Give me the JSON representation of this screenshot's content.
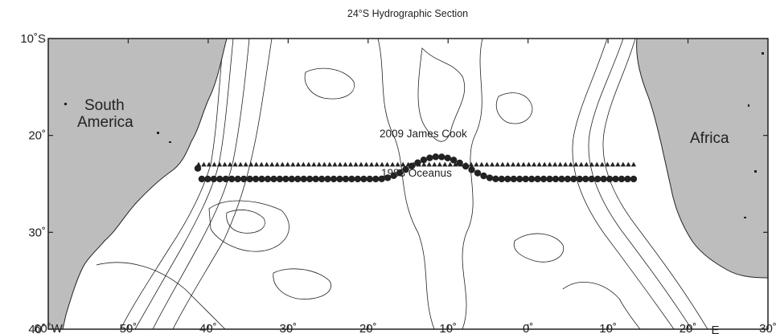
{
  "title": "24°S Hydrographic Section",
  "axes": {
    "lon_ticks": [
      {
        "lon": -60,
        "label": "60˚W"
      },
      {
        "lon": -50,
        "label": "50˚"
      },
      {
        "lon": -40,
        "label": "40˚"
      },
      {
        "lon": -30,
        "label": "30˚"
      },
      {
        "lon": -20,
        "label": "20˚"
      },
      {
        "lon": -10,
        "label": "10˚"
      },
      {
        "lon": 0,
        "label": "0˚"
      },
      {
        "lon": 10,
        "label": "10˚"
      },
      {
        "lon": 20,
        "label": "20˚"
      },
      {
        "lon": 30,
        "label": "30˚"
      }
    ],
    "lon_unit_label": "E",
    "lat_ticks": [
      {
        "lat": -10,
        "label": "10˚S"
      },
      {
        "lat": -20,
        "label": "20˚"
      },
      {
        "lat": -30,
        "label": "30˚"
      },
      {
        "lat": -40,
        "label": "40˚"
      }
    ],
    "lon_range": [
      -60,
      30
    ],
    "lat_range": [
      -40,
      -10
    ]
  },
  "labels": {
    "south_america": [
      "South",
      "America"
    ],
    "africa": "Africa",
    "cruise_2009": "2009 James Cook",
    "cruise_1983": "1983 Oceanus"
  },
  "colors": {
    "land": "#bdbdbd",
    "ink": "#222222"
  },
  "sections": {
    "oceanus_1983": {
      "marker": "triangle",
      "lat": -23,
      "lon_start": -41.2,
      "lon_end": 13.2,
      "station_count": 84
    },
    "james_cook_2009": {
      "marker": "circle",
      "start": {
        "lon": -41.3,
        "lat": -23.4
      },
      "track_lat": -24.5,
      "lon_end": 13.4,
      "spacing_deg": 0.75,
      "bulge": {
        "center_lon": -11.2,
        "half_width_deg": 7.5,
        "peak_lat": -22.2
      }
    }
  }
}
